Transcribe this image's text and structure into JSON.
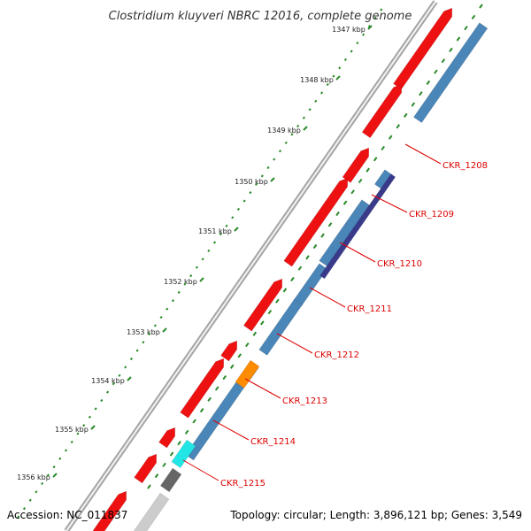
{
  "title": "Clostridium kluyveri NBRC 12016, complete genome",
  "footer": {
    "accession": "Accession: NC_011837",
    "summary": "Topology: circular; Length: 3,896,121 bp; Genes: 3,549"
  },
  "ruler": [
    {
      "label": "1347 kbp"
    },
    {
      "label": "1348 kbp"
    },
    {
      "label": "1349 kbp"
    },
    {
      "label": "1350 kbp"
    },
    {
      "label": "1351 kbp"
    },
    {
      "label": "1352 kbp"
    },
    {
      "label": "1353 kbp"
    },
    {
      "label": "1354 kbp"
    },
    {
      "label": "1355 kbp"
    },
    {
      "label": "1356 kbp"
    }
  ],
  "gene_labels": [
    {
      "name": "CKR_1208"
    },
    {
      "name": "CKR_1209"
    },
    {
      "name": "CKR_1210"
    },
    {
      "name": "CKR_1211"
    },
    {
      "name": "CKR_1212"
    },
    {
      "name": "CKR_1213"
    },
    {
      "name": "CKR_1214"
    },
    {
      "name": "CKR_1215"
    }
  ],
  "colors": {
    "forward_gene": "#ee1111",
    "reverse_gene": "#4a86b8",
    "highlight_orange": "#ff8c00",
    "highlight_cyan": "#22e6e6",
    "highlight_navy": "#3a3a8a",
    "gray_gene": "#666666",
    "label": "#dd0000",
    "tick": "#2a8a2a",
    "backbone": "#888888"
  }
}
